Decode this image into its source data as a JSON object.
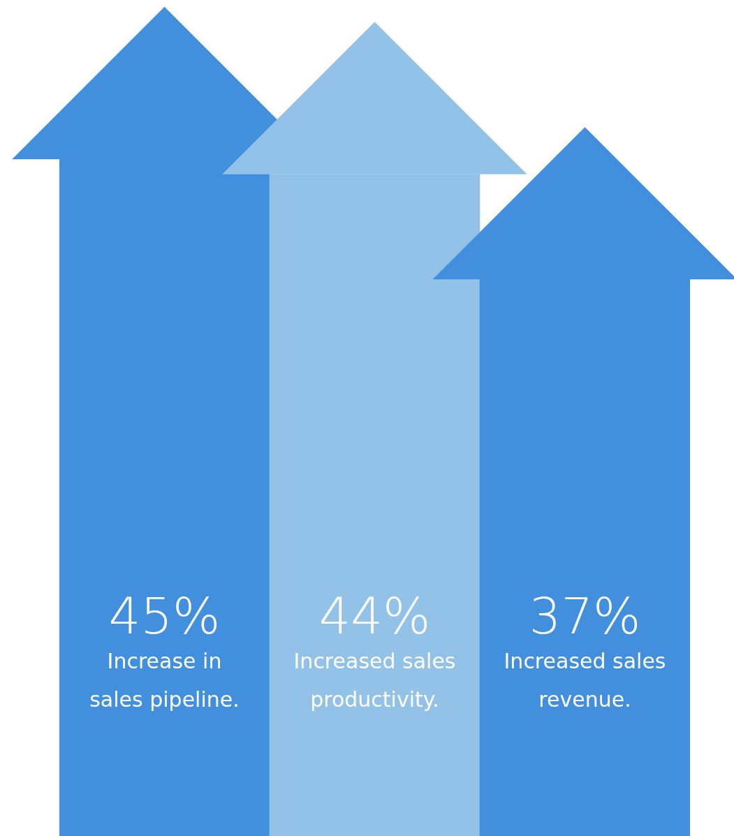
{
  "chart_data": {
    "type": "bar",
    "categories": [
      "Increase in sales pipeline.",
      "Increased sales productivity.",
      "Increased sales revenue."
    ],
    "values": [
      45,
      44,
      37
    ],
    "colors": [
      "#428fde",
      "#93c2e9",
      "#428fde"
    ],
    "value_labels": [
      "45%",
      "44%",
      "37%"
    ]
  }
}
